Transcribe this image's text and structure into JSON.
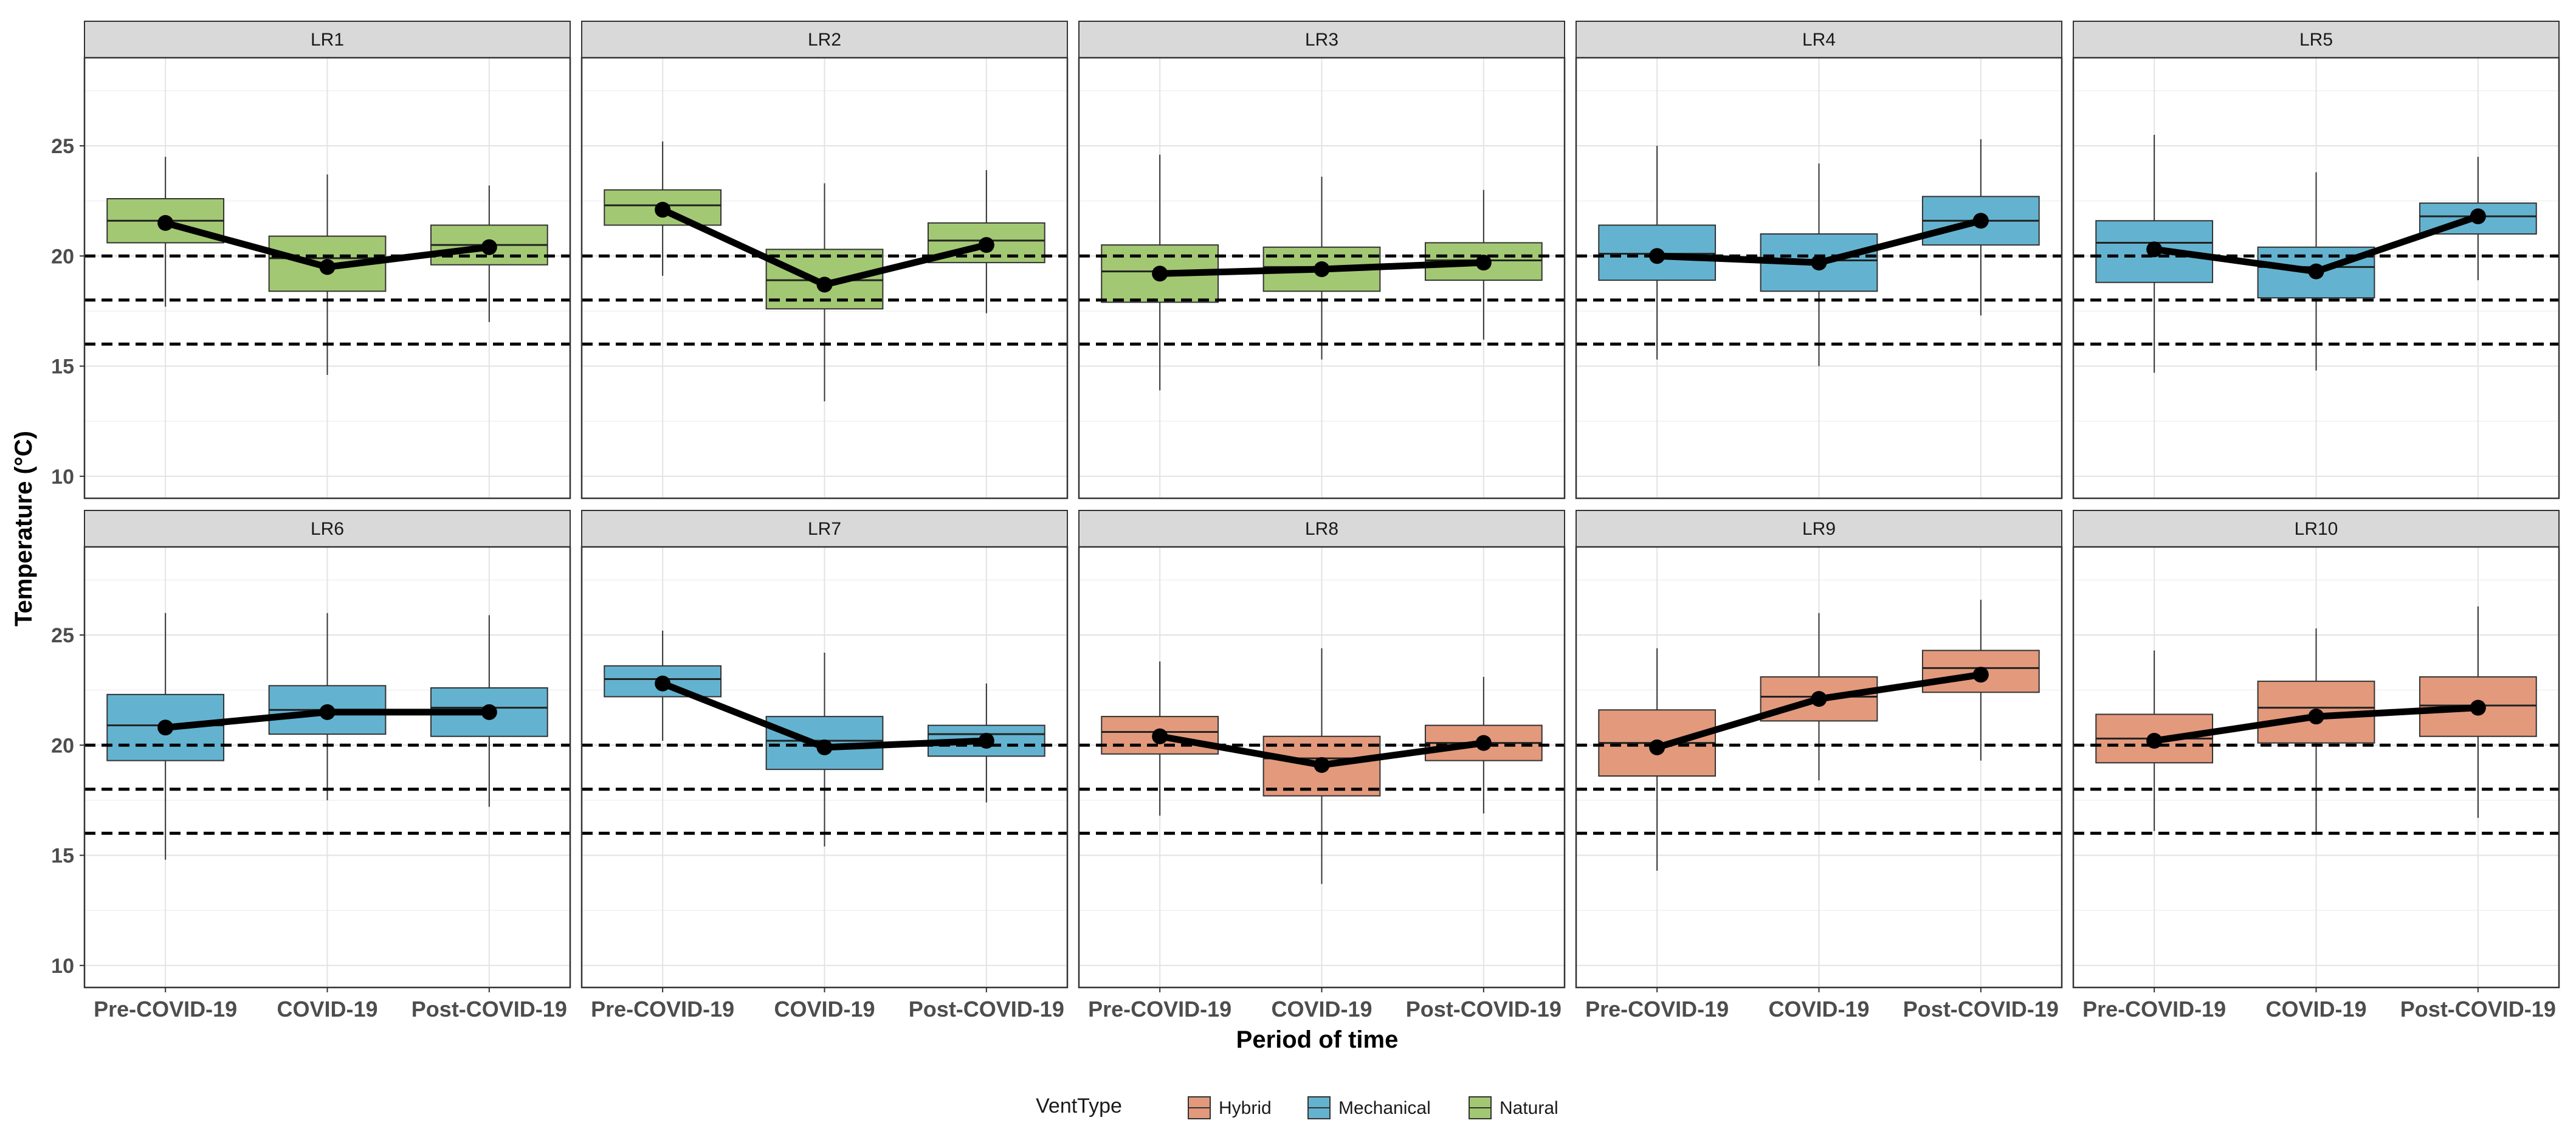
{
  "chart_data": {
    "type": "boxplot",
    "ylabel": "Temperature (°C)",
    "xlabel": "Period of time",
    "ylim": [
      9,
      29
    ],
    "yticks": [
      10,
      15,
      20,
      25
    ],
    "reference_lines": [
      16,
      18,
      20
    ],
    "categories": [
      "Pre-COVID-19",
      "COVID-19",
      "Post-COVID-19"
    ],
    "legend": {
      "title": "VentType",
      "position": "bottom",
      "items": [
        {
          "name": "Hybrid",
          "color": "#E3997C"
        },
        {
          "name": "Mechanical",
          "color": "#63B3D0"
        },
        {
          "name": "Natural",
          "color": "#A3C873"
        }
      ]
    },
    "panels": [
      {
        "label": "LR1",
        "vent": "Natural",
        "boxes": [
          {
            "min": 17.7,
            "q1": 20.6,
            "median": 21.6,
            "q3": 22.6,
            "max": 24.5,
            "mean": 21.5
          },
          {
            "min": 14.6,
            "q1": 18.4,
            "median": 19.9,
            "q3": 20.9,
            "max": 23.7,
            "mean": 19.5
          },
          {
            "min": 17.0,
            "q1": 19.6,
            "median": 20.5,
            "q3": 21.4,
            "max": 23.2,
            "mean": 20.4
          }
        ]
      },
      {
        "label": "LR2",
        "vent": "Natural",
        "boxes": [
          {
            "min": 19.1,
            "q1": 21.4,
            "median": 22.3,
            "q3": 23.0,
            "max": 25.2,
            "mean": 22.1
          },
          {
            "min": 13.4,
            "q1": 17.6,
            "median": 18.9,
            "q3": 20.3,
            "max": 23.3,
            "mean": 18.7
          },
          {
            "min": 17.4,
            "q1": 19.7,
            "median": 20.7,
            "q3": 21.5,
            "max": 23.9,
            "mean": 20.5
          }
        ]
      },
      {
        "label": "LR3",
        "vent": "Natural",
        "boxes": [
          {
            "min": 13.9,
            "q1": 17.9,
            "median": 19.3,
            "q3": 20.5,
            "max": 24.6,
            "mean": 19.2
          },
          {
            "min": 15.3,
            "q1": 18.4,
            "median": 19.5,
            "q3": 20.4,
            "max": 23.6,
            "mean": 19.4
          },
          {
            "min": 16.2,
            "q1": 18.9,
            "median": 19.8,
            "q3": 20.6,
            "max": 23.0,
            "mean": 19.7
          }
        ]
      },
      {
        "label": "LR4",
        "vent": "Mechanical",
        "boxes": [
          {
            "min": 15.3,
            "q1": 18.9,
            "median": 20.1,
            "q3": 21.4,
            "max": 25.0,
            "mean": 20.0
          },
          {
            "min": 15.0,
            "q1": 18.4,
            "median": 19.8,
            "q3": 21.0,
            "max": 24.2,
            "mean": 19.7
          },
          {
            "min": 17.3,
            "q1": 20.5,
            "median": 21.6,
            "q3": 22.7,
            "max": 25.3,
            "mean": 21.6
          }
        ]
      },
      {
        "label": "LR5",
        "vent": "Mechanical",
        "boxes": [
          {
            "min": 14.7,
            "q1": 18.8,
            "median": 20.6,
            "q3": 21.6,
            "max": 25.5,
            "mean": 20.3
          },
          {
            "min": 14.8,
            "q1": 18.1,
            "median": 19.5,
            "q3": 20.4,
            "max": 23.8,
            "mean": 19.3
          },
          {
            "min": 18.9,
            "q1": 21.0,
            "median": 21.8,
            "q3": 22.4,
            "max": 24.5,
            "mean": 21.8
          }
        ]
      },
      {
        "label": "LR6",
        "vent": "Mechanical",
        "boxes": [
          {
            "min": 14.8,
            "q1": 19.3,
            "median": 20.9,
            "q3": 22.3,
            "max": 26.0,
            "mean": 20.8
          },
          {
            "min": 17.5,
            "q1": 20.5,
            "median": 21.6,
            "q3": 22.7,
            "max": 26.0,
            "mean": 21.5
          },
          {
            "min": 17.2,
            "q1": 20.4,
            "median": 21.7,
            "q3": 22.6,
            "max": 25.9,
            "mean": 21.5
          }
        ]
      },
      {
        "label": "LR7",
        "vent": "Mechanical",
        "boxes": [
          {
            "min": 20.2,
            "q1": 22.2,
            "median": 23.0,
            "q3": 23.6,
            "max": 25.2,
            "mean": 22.8
          },
          {
            "min": 15.4,
            "q1": 18.9,
            "median": 20.2,
            "q3": 21.3,
            "max": 24.2,
            "mean": 19.9
          },
          {
            "min": 17.4,
            "q1": 19.5,
            "median": 20.5,
            "q3": 20.9,
            "max": 22.8,
            "mean": 20.2
          }
        ]
      },
      {
        "label": "LR8",
        "vent": "Hybrid",
        "boxes": [
          {
            "min": 16.8,
            "q1": 19.6,
            "median": 20.6,
            "q3": 21.3,
            "max": 23.8,
            "mean": 20.4
          },
          {
            "min": 13.7,
            "q1": 17.7,
            "median": 19.4,
            "q3": 20.4,
            "max": 24.4,
            "mean": 19.1
          },
          {
            "min": 16.9,
            "q1": 19.3,
            "median": 20.1,
            "q3": 20.9,
            "max": 23.1,
            "mean": 20.1
          }
        ]
      },
      {
        "label": "LR9",
        "vent": "Hybrid",
        "boxes": [
          {
            "min": 14.3,
            "q1": 18.6,
            "median": 20.1,
            "q3": 21.6,
            "max": 24.4,
            "mean": 19.9
          },
          {
            "min": 18.4,
            "q1": 21.1,
            "median": 22.2,
            "q3": 23.1,
            "max": 26.0,
            "mean": 22.1
          },
          {
            "min": 19.3,
            "q1": 22.4,
            "median": 23.5,
            "q3": 24.3,
            "max": 26.6,
            "mean": 23.2
          }
        ]
      },
      {
        "label": "LR10",
        "vent": "Hybrid",
        "boxes": [
          {
            "min": 16.1,
            "q1": 19.2,
            "median": 20.3,
            "q3": 21.4,
            "max": 24.3,
            "mean": 20.2
          },
          {
            "min": 16.0,
            "q1": 20.1,
            "median": 21.7,
            "q3": 22.9,
            "max": 25.3,
            "mean": 21.3
          },
          {
            "min": 16.7,
            "q1": 20.4,
            "median": 21.8,
            "q3": 23.1,
            "max": 26.3,
            "mean": 21.7
          }
        ]
      }
    ]
  }
}
